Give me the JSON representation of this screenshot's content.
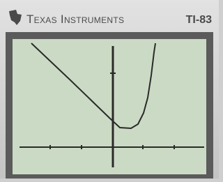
{
  "header": {
    "brand": "Texas Instruments",
    "model": "TI-83"
  }
}
